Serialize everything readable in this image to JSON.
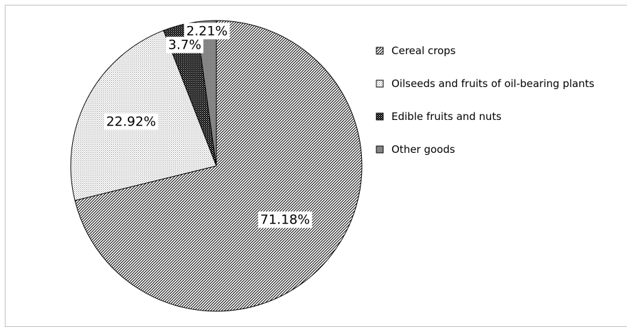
{
  "chart_data": {
    "type": "pie",
    "title": "",
    "start_angle_deg": 0,
    "direction": "clockwise",
    "legend_position": "right",
    "slices": [
      {
        "name": "Cereal crops",
        "value": 71.18,
        "label": "71.18%",
        "pattern": "diagonal-hatch"
      },
      {
        "name": "Oilseeds and fruits of oil-bearing plants",
        "value": 22.92,
        "label": "22.92%",
        "pattern": "light-dots"
      },
      {
        "name": "Edible fruits and nuts",
        "value": 3.7,
        "label": "3.7%",
        "pattern": "dark-dots"
      },
      {
        "name": "Other goods",
        "value": 2.21,
        "label": "2.21%",
        "pattern": "grey-fill"
      }
    ]
  }
}
